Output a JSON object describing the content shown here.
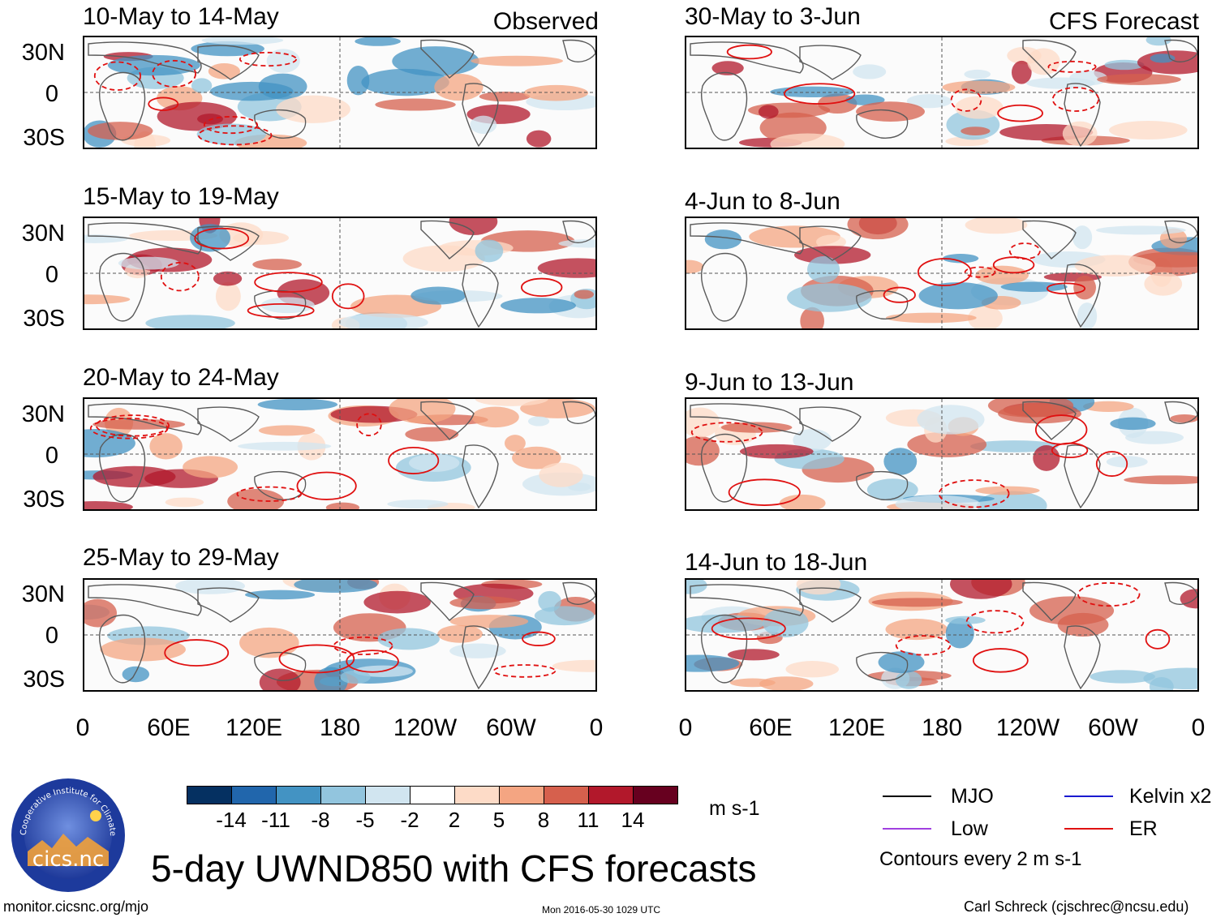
{
  "header": {
    "left_label": "Observed",
    "right_label": "CFS Forecast"
  },
  "panels_left": [
    {
      "title": "10-May to 14-May"
    },
    {
      "title": "15-May to 19-May"
    },
    {
      "title": "20-May to 24-May"
    },
    {
      "title": "25-May to 29-May"
    }
  ],
  "panels_right": [
    {
      "title": "30-May to 3-Jun"
    },
    {
      "title": "4-Jun to 8-Jun"
    },
    {
      "title": "9-Jun to 13-Jun"
    },
    {
      "title": "14-Jun to 18-Jun"
    }
  ],
  "lat_labels": [
    "30N",
    "0",
    "30S"
  ],
  "lon_labels": [
    "0",
    "60E",
    "120E",
    "180",
    "120W",
    "60W",
    "0"
  ],
  "colorbar": {
    "ticks": [
      "-14",
      "-11",
      "-8",
      "-5",
      "-2",
      "2",
      "5",
      "8",
      "11",
      "14"
    ],
    "colors": [
      "#053061",
      "#2166ac",
      "#4393c3",
      "#92c5de",
      "#d1e5f0",
      "#ffffff",
      "#fddbc7",
      "#f4a582",
      "#d6604d",
      "#b2182b",
      "#67001f"
    ],
    "units": "m s-1"
  },
  "legend": {
    "items": [
      {
        "label": "MJO",
        "color": "#000000"
      },
      {
        "label": "Kelvin x2",
        "color": "#1a1ad0"
      },
      {
        "label": "Low",
        "color": "#a040e0"
      },
      {
        "label": "ER",
        "color": "#e01010"
      }
    ],
    "contours_note": "Contours every 2 m s-1"
  },
  "main_title": "5-day UWND850 with CFS forecasts",
  "footer": {
    "url": "monitor.cicsnc.org/mjo",
    "timestamp": "Mon 2016-05-30 1029 UTC",
    "credit": "Carl Schreck (cjschrec@ncsu.edu)"
  },
  "logo": {
    "text": "cics.nc",
    "ring_text": "Cooperative Institute for Climate and Satellites"
  }
}
